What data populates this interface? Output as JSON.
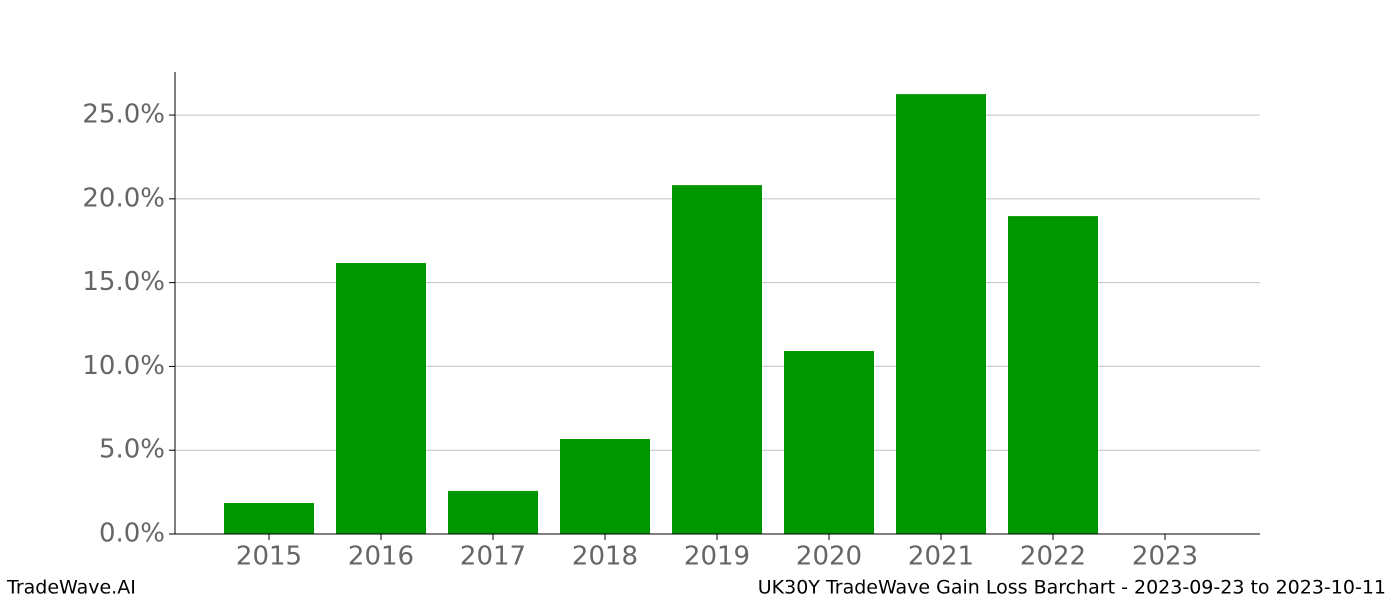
{
  "chart_data": {
    "type": "bar",
    "categories": [
      "2015",
      "2016",
      "2017",
      "2018",
      "2019",
      "2020",
      "2021",
      "2022",
      "2023"
    ],
    "values": [
      1.85,
      16.17,
      2.57,
      5.67,
      20.82,
      10.92,
      26.25,
      18.97,
      0
    ],
    "color": "#009600",
    "ylim": [
      0,
      27.57
    ],
    "yticks": [
      {
        "value": 0,
        "label": "0.0%"
      },
      {
        "value": 5,
        "label": "5.0%"
      },
      {
        "value": 10,
        "label": "10.0%"
      },
      {
        "value": 15,
        "label": "15.0%"
      },
      {
        "value": 20,
        "label": "20.0%"
      },
      {
        "value": 25,
        "label": "25.0%"
      }
    ],
    "grid": true
  },
  "footer": {
    "left": "TradeWave.AI",
    "right": "UK30Y TradeWave Gain Loss Barchart - 2023-09-23 to 2023-10-11"
  }
}
